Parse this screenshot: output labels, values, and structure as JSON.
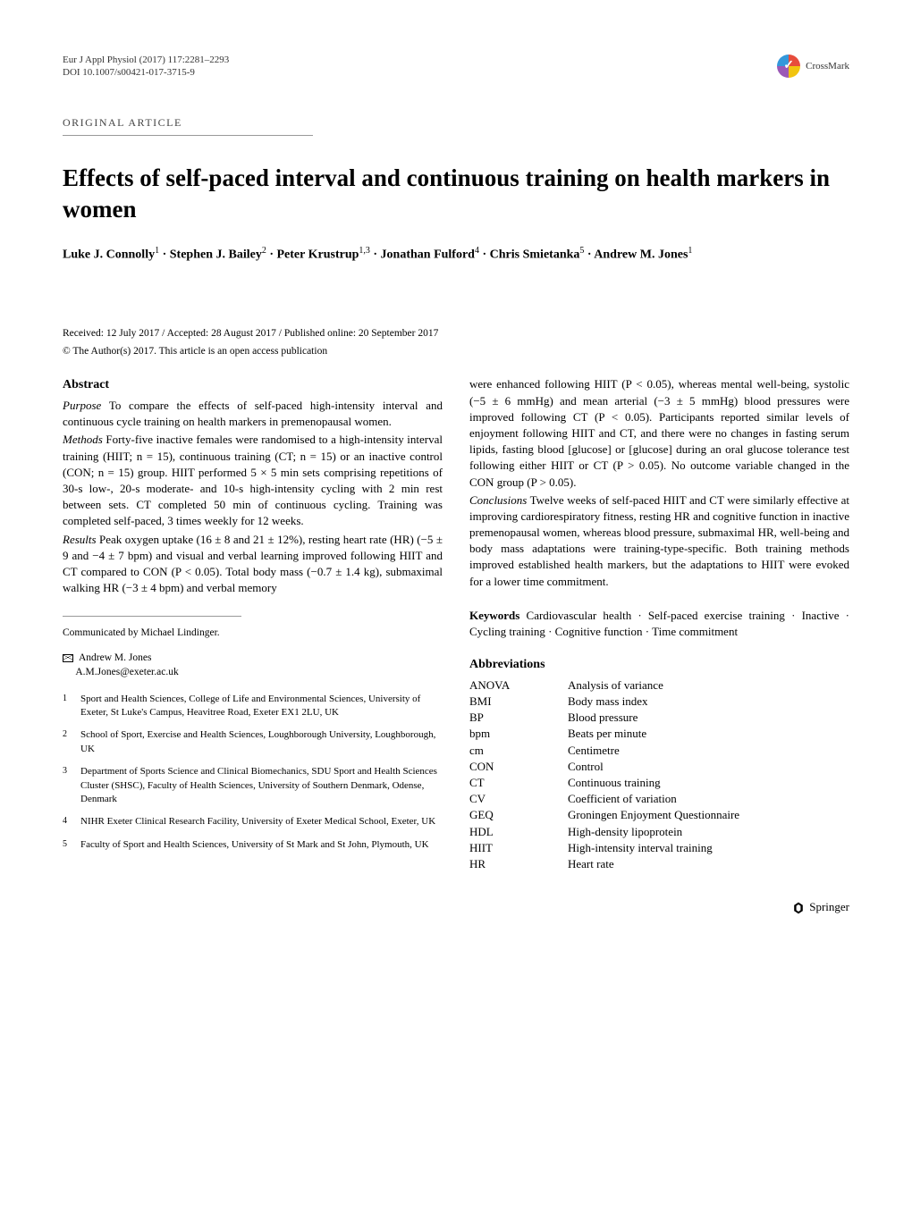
{
  "header": {
    "journal_line1": "Eur J Appl Physiol (2017) 117:2281–2293",
    "journal_line2": "DOI 10.1007/s00421-017-3715-9",
    "crossmark_label": "CrossMark"
  },
  "article_type": "ORIGINAL ARTICLE",
  "title": "Effects of self-paced interval and continuous training on health markers in women",
  "authors_html": "Luke J. Connolly<sup>1</sup> · Stephen J. Bailey<sup>2</sup> · Peter Krustrup<sup>1,3</sup> · Jonathan Fulford<sup>4</sup> · Chris Smietanka<sup>5</sup> · Andrew M. Jones<sup>1</sup>",
  "dates": "Received: 12 July 2017 / Accepted: 28 August 2017 / Published online: 20 September 2017",
  "copyright": "© The Author(s) 2017. This article is an open access publication",
  "abstract_heading": "Abstract",
  "abstract": {
    "purpose_label": "Purpose",
    "purpose": " To compare the effects of self-paced high-intensity interval and continuous cycle training on health markers in premenopausal women.",
    "methods_label": "Methods",
    "methods": " Forty-five inactive females were randomised to a high-intensity interval training (HIIT; n = 15), continuous training (CT; n = 15) or an inactive control (CON; n = 15) group. HIIT performed 5 × 5 min sets comprising repetitions of 30-s low-, 20-s moderate- and 10-s high-intensity cycling with 2 min rest between sets. CT completed 50 min of continuous cycling. Training was completed self-paced, 3 times weekly for 12 weeks.",
    "results_label": "Results",
    "results": " Peak oxygen uptake (16 ± 8 and 21 ± 12%), resting heart rate (HR) (−5 ± 9 and −4 ± 7 bpm) and visual and verbal learning improved following HIIT and CT compared to CON (P < 0.05). Total body mass (−0.7 ± 1.4 kg), submaximal walking HR (−3 ± 4 bpm) and verbal memory",
    "results_cont": "were enhanced following HIIT (P < 0.05), whereas mental well-being, systolic (−5 ± 6 mmHg) and mean arterial (−3 ± 5 mmHg) blood pressures were improved following CT (P < 0.05). Participants reported similar levels of enjoyment following HIIT and CT, and there were no changes in fasting serum lipids, fasting blood [glucose] or [glucose] during an oral glucose tolerance test following either HIIT or CT (P > 0.05). No outcome variable changed in the CON group (P > 0.05).",
    "conclusions_label": "Conclusions",
    "conclusions": " Twelve weeks of self-paced HIIT and CT were similarly effective at improving cardiorespiratory fitness, resting HR and cognitive function in inactive premenopausal women, whereas blood pressure, submaximal HR, well-being and body mass adaptations were training-type-specific. Both training methods improved established health markers, but the adaptations to HIIT were evoked for a lower time commitment."
  },
  "keywords_label": "Keywords",
  "keywords": " Cardiovascular health · Self-paced exercise training · Inactive · Cycling training · Cognitive function · Time commitment",
  "abbrev_heading": "Abbreviations",
  "abbreviations": [
    {
      "k": "ANOVA",
      "v": "Analysis of variance"
    },
    {
      "k": "BMI",
      "v": "Body mass index"
    },
    {
      "k": "BP",
      "v": "Blood pressure"
    },
    {
      "k": "bpm",
      "v": "Beats per minute"
    },
    {
      "k": "cm",
      "v": "Centimetre"
    },
    {
      "k": "CON",
      "v": "Control"
    },
    {
      "k": "CT",
      "v": "Continuous training"
    },
    {
      "k": "CV",
      "v": "Coefficient of variation"
    },
    {
      "k": "GEQ",
      "v": "Groningen Enjoyment Questionnaire"
    },
    {
      "k": "HDL",
      "v": "High-density lipoprotein"
    },
    {
      "k": "HIIT",
      "v": "High-intensity interval training"
    },
    {
      "k": "HR",
      "v": "Heart rate"
    }
  ],
  "communicated": "Communicated by Michael Lindinger.",
  "correspondence": {
    "name": "Andrew M. Jones",
    "email": "A.M.Jones@exeter.ac.uk"
  },
  "affiliations": [
    {
      "n": "1",
      "t": "Sport and Health Sciences, College of Life and Environmental Sciences, University of Exeter, St Luke's Campus, Heavitree Road, Exeter EX1 2LU, UK"
    },
    {
      "n": "2",
      "t": "School of Sport, Exercise and Health Sciences, Loughborough University, Loughborough, UK"
    },
    {
      "n": "3",
      "t": "Department of Sports Science and Clinical Biomechanics, SDU Sport and Health Sciences Cluster (SHSC), Faculty of Health Sciences, University of Southern Denmark, Odense, Denmark"
    },
    {
      "n": "4",
      "t": "NIHR Exeter Clinical Research Facility, University of Exeter Medical School, Exeter, UK"
    },
    {
      "n": "5",
      "t": "Faculty of Sport and Health Sciences, University of St Mark and St John, Plymouth, UK"
    }
  ],
  "footer": {
    "publisher": "Springer"
  },
  "colors": {
    "text": "#000000",
    "rule": "#999999",
    "background": "#ffffff"
  }
}
